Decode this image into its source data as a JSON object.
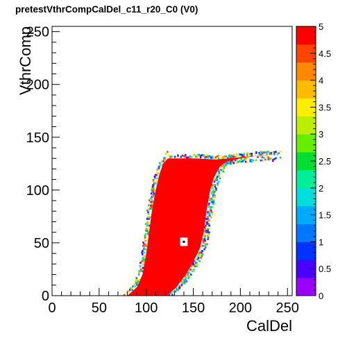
{
  "chart_data": {
    "type": "heatmap",
    "title": "pretestVthrCompCalDel_c11_r20_C0 (V0)",
    "xlabel": "CalDel",
    "ylabel": "VthrComp",
    "xlim": [
      0,
      255
    ],
    "ylim": [
      0,
      255
    ],
    "zlim": [
      0,
      5
    ],
    "x_ticks": [
      0,
      50,
      100,
      150,
      200,
      250
    ],
    "y_ticks": [
      0,
      50,
      100,
      150,
      200,
      250
    ],
    "z_ticks": [
      "0",
      "0.5",
      "1",
      "1.5",
      "2",
      "2.5",
      "3",
      "3.5",
      "4",
      "4.5",
      "5"
    ],
    "grid": false,
    "legend": "right-color-bar",
    "colors": {
      "full": "#ff0000",
      "palette": [
        "#9900ff",
        "#4b00ff",
        "#0033ff",
        "#0077ff",
        "#00aaff",
        "#00dddd",
        "#00ee99",
        "#00dd33",
        "#66ee00",
        "#bbee00",
        "#ffee00",
        "#ffbb00",
        "#ff8800",
        "#ff4400",
        "#ff0000"
      ]
    },
    "efficient_region": {
      "description_values": "z = 5 inside band",
      "left_edge": [
        [
          80,
          0
        ],
        [
          90,
          8
        ],
        [
          96,
          20
        ],
        [
          100,
          40
        ],
        [
          103,
          60
        ],
        [
          106,
          80
        ],
        [
          110,
          100
        ],
        [
          114,
          115
        ],
        [
          118,
          125
        ],
        [
          123,
          130
        ]
      ],
      "right_edge": [
        [
          122,
          0
        ],
        [
          132,
          8
        ],
        [
          142,
          20
        ],
        [
          150,
          32
        ],
        [
          157,
          45
        ],
        [
          161,
          60
        ],
        [
          164,
          80
        ],
        [
          168,
          100
        ],
        [
          172,
          112
        ],
        [
          178,
          122
        ],
        [
          185,
          127
        ],
        [
          200,
          130
        ],
        [
          215,
          132
        ],
        [
          230,
          133
        ],
        [
          240,
          133
        ]
      ],
      "upper_edge": [
        [
          123,
          130
        ],
        [
          150,
          130
        ],
        [
          175,
          129
        ],
        [
          200,
          131
        ],
        [
          225,
          133
        ],
        [
          240,
          133
        ]
      ]
    },
    "hole": {
      "x": [
        136,
        144
      ],
      "y": [
        47,
        55
      ],
      "value": 0,
      "center_value": 5
    }
  }
}
